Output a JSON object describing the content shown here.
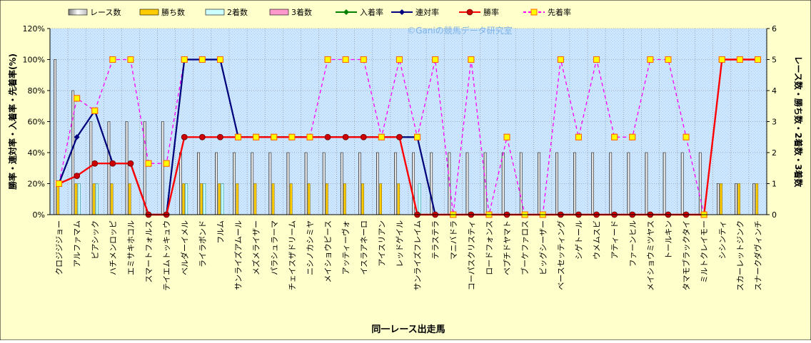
{
  "chart_data": {
    "type": "bar+line",
    "watermark": "©Ganiの競馬データ研究室",
    "xlabel": "同一レース出走馬",
    "ylabel_left": "勝率・連対率・入着率・先着率(%)",
    "ylabel_right": "レース数・勝ち数・2着数・3着数",
    "ylim_left": [
      0,
      120
    ],
    "ylim_right": [
      0,
      6
    ],
    "left_ticks": [
      "0%",
      "20%",
      "40%",
      "60%",
      "80%",
      "100%",
      "120%"
    ],
    "right_ticks": [
      "0",
      "1",
      "2",
      "3",
      "4",
      "5",
      "6"
    ],
    "grid": true,
    "legend_position": "top",
    "colors": {
      "page_bg": "#FFFFCC",
      "plot_bg": "#CCE6FF",
      "race_bar": "#FFFFFF",
      "win_bar": "#FFCC00",
      "second_bar": "#CCFFFF",
      "third_bar": "#FF99CC",
      "nyuchaku": "#008000",
      "rentai": "#000080",
      "win_rate": "#FF0000",
      "senchaku": "#FF00FF",
      "senchaku_marker": "#FFFF00"
    },
    "legend": [
      {
        "name": "レース数",
        "kind": "bar",
        "color": "#FFFFFF"
      },
      {
        "name": "勝ち数",
        "kind": "bar",
        "color": "#FFCC00"
      },
      {
        "name": "2着数",
        "kind": "bar",
        "color": "#CCFFFF"
      },
      {
        "name": "3着数",
        "kind": "bar",
        "color": "#FF99CC"
      },
      {
        "name": "入着率",
        "kind": "line",
        "color": "#008000",
        "marker": "diamond"
      },
      {
        "name": "連対率",
        "kind": "line",
        "color": "#000080",
        "marker": "diamond"
      },
      {
        "name": "勝率",
        "kind": "line",
        "color": "#FF0000",
        "marker": "circle"
      },
      {
        "name": "先着率",
        "kind": "dashed",
        "color": "#FF00FF",
        "marker": "square"
      }
    ],
    "categories": [
      "クロジジジョー",
      "アルファマム",
      "ピアシック",
      "ハチメンロッピ",
      "エミサキホコル",
      "スマートフォルス",
      "テイエムトッキュウ",
      "ベルダーイメル",
      "ライラボンド",
      "フルム",
      "サンライズアムール",
      "メズメライザー",
      "パラシュラーマ",
      "チェイスザドリーム",
      "ニシノカシミヤ",
      "メイショウピース",
      "アッティーヴォ",
      "イスラアネーロ",
      "アイスリアン",
      "レッドゲイル",
      "サンライズフレイム",
      "テラステラ",
      "マニバドラ",
      "コーパスクリスティ",
      "ロードフォンス",
      "ペプチドヤマト",
      "ブーケファロス",
      "ビッグシーザー",
      "ベースセッティング",
      "シゲトール",
      "ウメムスビ",
      "アティード",
      "ファーンヒル",
      "メイショウミツヤス",
      "トールキン",
      "タマモブラックタイ",
      "ミルトクレイモー",
      "シシンティ",
      "スカーレットジンク",
      "スナークダヴィンチ"
    ],
    "series": [
      {
        "name": "レース数",
        "axis": "right",
        "values": [
          5,
          4,
          3,
          3,
          3,
          3,
          3,
          2,
          2,
          2,
          2,
          2,
          2,
          2,
          2,
          2,
          2,
          2,
          2,
          2,
          2,
          2,
          2,
          2,
          2,
          2,
          2,
          2,
          2,
          2,
          2,
          2,
          2,
          2,
          2,
          2,
          2,
          1,
          1,
          1
        ]
      },
      {
        "name": "勝ち数",
        "axis": "right",
        "values": [
          1,
          1,
          1,
          1,
          1,
          0,
          0,
          1,
          1,
          1,
          1,
          1,
          1,
          1,
          1,
          1,
          1,
          1,
          1,
          1,
          0,
          0,
          0,
          0,
          0,
          0,
          0,
          0,
          0,
          0,
          0,
          0,
          0,
          0,
          0,
          0,
          0,
          1,
          1,
          1
        ]
      },
      {
        "name": "2着数",
        "axis": "right",
        "values": [
          0,
          1,
          1,
          0,
          0,
          0,
          0,
          1,
          1,
          1,
          0,
          0,
          0,
          0,
          0,
          0,
          0,
          0,
          0,
          0,
          1,
          0,
          0,
          0,
          0,
          0,
          0,
          0,
          0,
          0,
          0,
          0,
          0,
          0,
          0,
          0,
          0,
          0,
          0,
          0
        ]
      },
      {
        "name": "3着数",
        "axis": "right",
        "values": [
          0,
          0,
          0,
          0,
          0,
          0,
          0,
          0,
          0,
          0,
          0,
          0,
          0,
          0,
          0,
          0,
          0,
          0,
          0,
          0,
          0,
          0,
          0,
          0,
          0,
          0,
          0,
          0,
          0,
          0,
          0,
          0,
          0,
          0,
          0,
          0,
          0,
          0,
          0,
          0
        ]
      },
      {
        "name": "入着率",
        "axis": "left",
        "values": [
          20,
          50,
          67,
          33,
          33,
          0,
          0,
          100,
          100,
          100,
          50,
          50,
          50,
          50,
          50,
          50,
          50,
          50,
          50,
          50,
          50,
          0,
          null,
          null,
          null,
          null,
          null,
          null,
          null,
          null,
          null,
          null,
          null,
          null,
          null,
          null,
          null,
          null,
          null,
          null
        ]
      },
      {
        "name": "連対率",
        "axis": "left",
        "values": [
          20,
          50,
          67,
          33,
          33,
          0,
          0,
          100,
          100,
          100,
          50,
          50,
          50,
          50,
          50,
          50,
          50,
          50,
          50,
          50,
          50,
          0,
          null,
          null,
          null,
          null,
          null,
          null,
          null,
          null,
          null,
          null,
          null,
          null,
          null,
          null,
          null,
          null,
          null,
          null
        ]
      },
      {
        "name": "勝率",
        "axis": "left",
        "values": [
          20,
          25,
          33,
          33,
          33,
          0,
          0,
          50,
          50,
          50,
          50,
          50,
          50,
          50,
          50,
          50,
          50,
          50,
          50,
          50,
          0,
          0,
          0,
          0,
          0,
          0,
          0,
          0,
          0,
          0,
          0,
          0,
          0,
          0,
          0,
          0,
          0,
          100,
          100,
          100
        ]
      },
      {
        "name": "先着率",
        "axis": "left",
        "values": [
          20,
          75,
          67,
          100,
          100,
          33,
          33,
          100,
          100,
          100,
          50,
          50,
          50,
          50,
          50,
          100,
          100,
          100,
          50,
          100,
          50,
          100,
          0,
          100,
          0,
          50,
          0,
          0,
          100,
          50,
          100,
          50,
          50,
          100,
          100,
          50,
          0,
          100,
          100,
          100
        ]
      }
    ]
  }
}
